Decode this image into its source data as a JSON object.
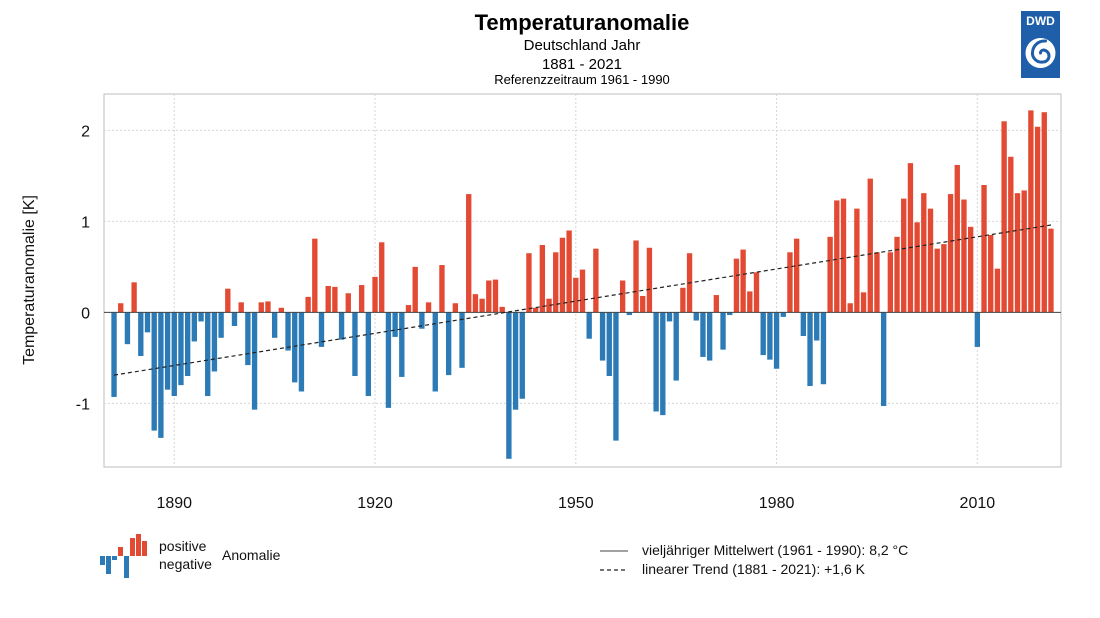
{
  "header": {
    "title": "Temperaturanomalie",
    "subtitle": "Deutschland Jahr",
    "period": "1881 - 2021",
    "reference": "Referenzzeitraum 1961 - 1990"
  },
  "logo": {
    "text": "DWD",
    "icon": "dwd-swirl-icon",
    "color": "#1f5ea8"
  },
  "legend": {
    "positive": "positive",
    "negative": "negative",
    "anomaly": "Anomalie",
    "mean": "vieljähriger Mittelwert (1961 - 1990): 8,2 °C",
    "trend": "linearer Trend (1881 - 2021): +1,6 K"
  },
  "colors": {
    "positive": "#e34a33",
    "negative": "#2c7bb6"
  },
  "chart_data": {
    "type": "bar",
    "title": "Temperaturanomalie",
    "subtitle": "Deutschland Jahr",
    "xlabel": "",
    "ylabel": "Temperaturanomalie [K]",
    "x": [
      1881,
      1882,
      1883,
      1884,
      1885,
      1886,
      1887,
      1888,
      1889,
      1890,
      1891,
      1892,
      1893,
      1894,
      1895,
      1896,
      1897,
      1898,
      1899,
      1900,
      1901,
      1902,
      1903,
      1904,
      1905,
      1906,
      1907,
      1908,
      1909,
      1910,
      1911,
      1912,
      1913,
      1914,
      1915,
      1916,
      1917,
      1918,
      1919,
      1920,
      1921,
      1922,
      1923,
      1924,
      1925,
      1926,
      1927,
      1928,
      1929,
      1930,
      1931,
      1932,
      1933,
      1934,
      1935,
      1936,
      1937,
      1938,
      1939,
      1940,
      1941,
      1942,
      1943,
      1944,
      1945,
      1946,
      1947,
      1948,
      1949,
      1950,
      1951,
      1952,
      1953,
      1954,
      1955,
      1956,
      1957,
      1958,
      1959,
      1960,
      1961,
      1962,
      1963,
      1964,
      1965,
      1966,
      1967,
      1968,
      1969,
      1970,
      1971,
      1972,
      1973,
      1974,
      1975,
      1976,
      1977,
      1978,
      1979,
      1980,
      1981,
      1982,
      1983,
      1984,
      1985,
      1986,
      1987,
      1988,
      1989,
      1990,
      1991,
      1992,
      1993,
      1994,
      1995,
      1996,
      1997,
      1998,
      1999,
      2000,
      2001,
      2002,
      2003,
      2004,
      2005,
      2006,
      2007,
      2008,
      2009,
      2010,
      2011,
      2012,
      2013,
      2014,
      2015,
      2016,
      2017,
      2018,
      2019,
      2020,
      2021
    ],
    "values": [
      -0.93,
      0.1,
      -0.35,
      0.33,
      -0.48,
      -0.22,
      -1.3,
      -1.38,
      -0.85,
      -0.92,
      -0.8,
      -0.7,
      -0.32,
      -0.1,
      -0.92,
      -0.65,
      -0.28,
      0.26,
      -0.15,
      0.11,
      -0.58,
      -1.07,
      0.11,
      0.12,
      -0.28,
      0.05,
      -0.42,
      -0.77,
      -0.87,
      0.17,
      0.81,
      -0.38,
      0.29,
      0.28,
      -0.3,
      0.21,
      -0.7,
      0.3,
      -0.92,
      0.39,
      0.77,
      -1.05,
      -0.27,
      -0.71,
      0.08,
      0.5,
      -0.18,
      0.11,
      -0.87,
      0.52,
      -0.69,
      0.1,
      -0.61,
      1.3,
      0.2,
      0.15,
      0.35,
      0.36,
      0.06,
      -1.61,
      -1.07,
      -0.95,
      0.65,
      0.05,
      0.74,
      0.15,
      0.66,
      0.82,
      0.9,
      0.38,
      0.47,
      -0.29,
      0.7,
      -0.53,
      -0.7,
      -1.41,
      0.35,
      -0.03,
      0.79,
      0.18,
      0.71,
      -1.09,
      -1.13,
      -0.1,
      -0.75,
      0.27,
      0.65,
      -0.09,
      -0.49,
      -0.53,
      0.19,
      -0.41,
      -0.03,
      0.59,
      0.69,
      0.23,
      0.44,
      -0.47,
      -0.52,
      -0.62,
      -0.05,
      0.66,
      0.81,
      -0.26,
      -0.81,
      -0.31,
      -0.79,
      0.83,
      1.23,
      1.25,
      0.1,
      1.14,
      0.22,
      1.47,
      0.66,
      -1.03,
      0.66,
      0.83,
      1.25,
      1.64,
      0.99,
      1.31,
      1.14,
      0.7,
      0.75,
      1.3,
      1.62,
      1.24,
      0.94,
      -0.38,
      1.4,
      0.85,
      0.48,
      2.1,
      1.71,
      1.31,
      1.34,
      2.22,
      2.04,
      2.2,
      0.92
    ],
    "trend": {
      "start_year": 1881,
      "start_value": -0.69,
      "end_year": 2021,
      "end_value": 0.96
    },
    "ylim": [
      -1.7,
      2.4
    ],
    "xlim": [
      1879.5,
      2022.5
    ],
    "yticks": [
      -1,
      0,
      1,
      2
    ],
    "ytick_labels": [
      "-1",
      "0",
      "1",
      "2"
    ],
    "xticks": [
      1890,
      1920,
      1950,
      1980,
      2010
    ],
    "xtick_labels": [
      "1890",
      "1920",
      "1950",
      "1980",
      "2010"
    ],
    "grid": true,
    "legend_position": "bottom"
  }
}
